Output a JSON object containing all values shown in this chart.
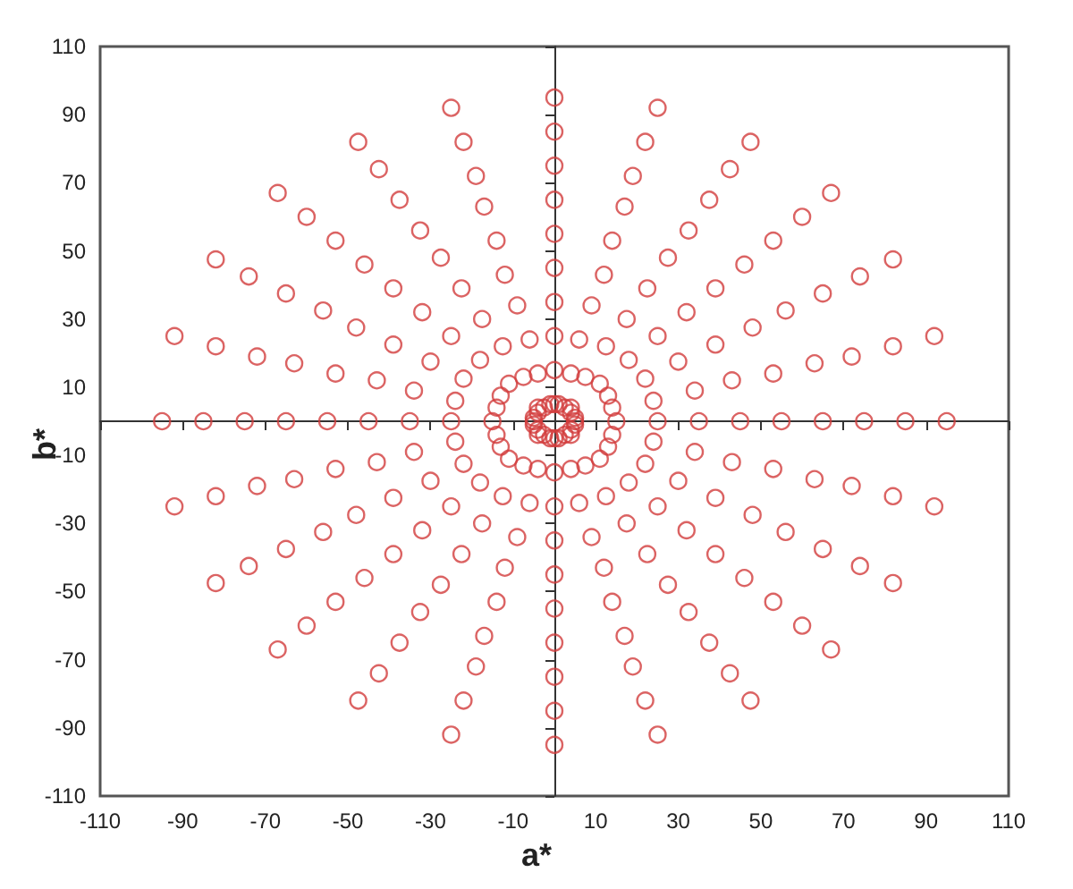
{
  "chart_data": {
    "type": "scatter",
    "xlabel": "a*",
    "ylabel": "b*",
    "marker": "circle",
    "xlim": [
      -110,
      110
    ],
    "ylim": [
      -110,
      110
    ],
    "xticks": [
      -110,
      -90,
      -70,
      -50,
      -30,
      -10,
      10,
      30,
      50,
      70,
      90,
      110
    ],
    "yticks": [
      -110,
      -90,
      -70,
      -50,
      -30,
      -10,
      10,
      30,
      50,
      70,
      90,
      110
    ],
    "series": [
      {
        "color": "#d23c3c",
        "x": [
          5,
          15,
          25,
          35,
          45,
          55,
          65,
          75,
          85,
          95
        ],
        "values": [
          0,
          0,
          0,
          0,
          0,
          0,
          0,
          0,
          0,
          0
        ]
      },
      {
        "color": "#d23c3c",
        "x": [
          5,
          14,
          24,
          34,
          43,
          53,
          63,
          72,
          82,
          92
        ],
        "values": [
          1,
          4,
          6,
          9,
          12,
          14,
          17,
          19,
          22,
          25
        ]
      },
      {
        "color": "#d23c3c",
        "x": [
          4,
          13,
          22,
          30,
          39,
          48,
          56,
          65,
          74,
          82
        ],
        "values": [
          2.5,
          7.5,
          12.5,
          17.5,
          22.5,
          27.5,
          32.5,
          37.5,
          42.5,
          47.5
        ]
      },
      {
        "color": "#d23c3c",
        "x": [
          4,
          11,
          18,
          25,
          32,
          39,
          46,
          53,
          60,
          67
        ],
        "values": [
          4,
          11,
          18,
          25,
          32,
          39,
          46,
          53,
          60,
          67
        ]
      },
      {
        "color": "#d23c3c",
        "x": [
          2.5,
          7.5,
          12.5,
          17.5,
          22.5,
          27.5,
          32.5,
          37.5,
          42.5,
          47.5
        ],
        "values": [
          4,
          13,
          22,
          30,
          39,
          48,
          56,
          65,
          74,
          82
        ]
      },
      {
        "color": "#d23c3c",
        "x": [
          1,
          4,
          6,
          9,
          12,
          14,
          17,
          19,
          22,
          25
        ],
        "values": [
          5,
          14,
          24,
          34,
          43,
          53,
          63,
          72,
          82,
          92
        ]
      },
      {
        "color": "#d23c3c",
        "x": [
          0,
          0,
          0,
          0,
          0,
          0,
          0,
          0,
          0,
          0
        ],
        "values": [
          5,
          15,
          25,
          35,
          45,
          55,
          65,
          75,
          85,
          95
        ]
      },
      {
        "color": "#d23c3c",
        "x": [
          -1,
          -4,
          -6,
          -9,
          -12,
          -14,
          -17,
          -19,
          -22,
          -25
        ],
        "values": [
          5,
          14,
          24,
          34,
          43,
          53,
          63,
          72,
          82,
          92
        ]
      },
      {
        "color": "#d23c3c",
        "x": [
          -2.5,
          -7.5,
          -12.5,
          -17.5,
          -22.5,
          -27.5,
          -32.5,
          -37.5,
          -42.5,
          -47.5
        ],
        "values": [
          4,
          13,
          22,
          30,
          39,
          48,
          56,
          65,
          74,
          82
        ]
      },
      {
        "color": "#d23c3c",
        "x": [
          -4,
          -11,
          -18,
          -25,
          -32,
          -39,
          -46,
          -53,
          -60,
          -67
        ],
        "values": [
          4,
          11,
          18,
          25,
          32,
          39,
          46,
          53,
          60,
          67
        ]
      },
      {
        "color": "#d23c3c",
        "x": [
          -4,
          -13,
          -22,
          -30,
          -39,
          -48,
          -56,
          -65,
          -74,
          -82
        ],
        "values": [
          2.5,
          7.5,
          12.5,
          17.5,
          22.5,
          27.5,
          32.5,
          37.5,
          42.5,
          47.5
        ]
      },
      {
        "color": "#d23c3c",
        "x": [
          -5,
          -14,
          -24,
          -34,
          -43,
          -53,
          -63,
          -72,
          -82,
          -92
        ],
        "values": [
          1,
          4,
          6,
          9,
          12,
          14,
          17,
          19,
          22,
          25
        ]
      },
      {
        "color": "#d23c3c",
        "x": [
          -5,
          -15,
          -25,
          -35,
          -45,
          -55,
          -65,
          -75,
          -85,
          -95
        ],
        "values": [
          0,
          0,
          0,
          0,
          0,
          0,
          0,
          0,
          0,
          0
        ]
      },
      {
        "color": "#d23c3c",
        "x": [
          -5,
          -14,
          -24,
          -34,
          -43,
          -53,
          -63,
          -72,
          -82,
          -92
        ],
        "values": [
          -1,
          -4,
          -6,
          -9,
          -12,
          -14,
          -17,
          -19,
          -22,
          -25
        ]
      },
      {
        "color": "#d23c3c",
        "x": [
          -4,
          -13,
          -22,
          -30,
          -39,
          -48,
          -56,
          -65,
          -74,
          -82
        ],
        "values": [
          -2.5,
          -7.5,
          -12.5,
          -17.5,
          -22.5,
          -27.5,
          -32.5,
          -37.5,
          -42.5,
          -47.5
        ]
      },
      {
        "color": "#d23c3c",
        "x": [
          -4,
          -11,
          -18,
          -25,
          -32,
          -39,
          -46,
          -53,
          -60,
          -67
        ],
        "values": [
          -4,
          -11,
          -18,
          -25,
          -32,
          -39,
          -46,
          -53,
          -60,
          -67
        ]
      },
      {
        "color": "#d23c3c",
        "x": [
          -2.5,
          -7.5,
          -12.5,
          -17.5,
          -22.5,
          -27.5,
          -32.5,
          -37.5,
          -42.5,
          -47.5
        ],
        "values": [
          -4,
          -13,
          -22,
          -30,
          -39,
          -48,
          -56,
          -65,
          -74,
          -82
        ]
      },
      {
        "color": "#d23c3c",
        "x": [
          -1,
          -4,
          -6,
          -9,
          -12,
          -14,
          -17,
          -19,
          -22,
          -25
        ],
        "values": [
          -5,
          -14,
          -24,
          -34,
          -43,
          -53,
          -63,
          -72,
          -82,
          -92
        ]
      },
      {
        "color": "#d23c3c",
        "x": [
          0,
          0,
          0,
          0,
          0,
          0,
          0,
          0,
          0,
          0
        ],
        "values": [
          -5,
          -15,
          -25,
          -35,
          -45,
          -55,
          -65,
          -75,
          -85,
          -95
        ]
      },
      {
        "color": "#d23c3c",
        "x": [
          1,
          4,
          6,
          9,
          12,
          14,
          17,
          19,
          22,
          25
        ],
        "values": [
          -5,
          -14,
          -24,
          -34,
          -43,
          -53,
          -63,
          -72,
          -82,
          -92
        ]
      },
      {
        "color": "#d23c3c",
        "x": [
          2.5,
          7.5,
          12.5,
          17.5,
          22.5,
          27.5,
          32.5,
          37.5,
          42.5,
          47.5
        ],
        "values": [
          -4,
          -13,
          -22,
          -30,
          -39,
          -48,
          -56,
          -65,
          -74,
          -82
        ]
      },
      {
        "color": "#d23c3c",
        "x": [
          4,
          11,
          18,
          25,
          32,
          39,
          46,
          53,
          60,
          67
        ],
        "values": [
          -4,
          -11,
          -18,
          -25,
          -32,
          -39,
          -46,
          -53,
          -60,
          -67
        ]
      },
      {
        "color": "#d23c3c",
        "x": [
          4,
          13,
          22,
          30,
          39,
          48,
          56,
          65,
          74,
          82
        ],
        "values": [
          -2.5,
          -7.5,
          -12.5,
          -17.5,
          -22.5,
          -27.5,
          -32.5,
          -37.5,
          -42.5,
          -47.5
        ]
      },
      {
        "color": "#d23c3c",
        "x": [
          5,
          14,
          24,
          34,
          43,
          53,
          63,
          72,
          82,
          92
        ],
        "values": [
          -1,
          -4,
          -6,
          -9,
          -12,
          -14,
          -17,
          -19,
          -22,
          -25
        ]
      }
    ]
  }
}
